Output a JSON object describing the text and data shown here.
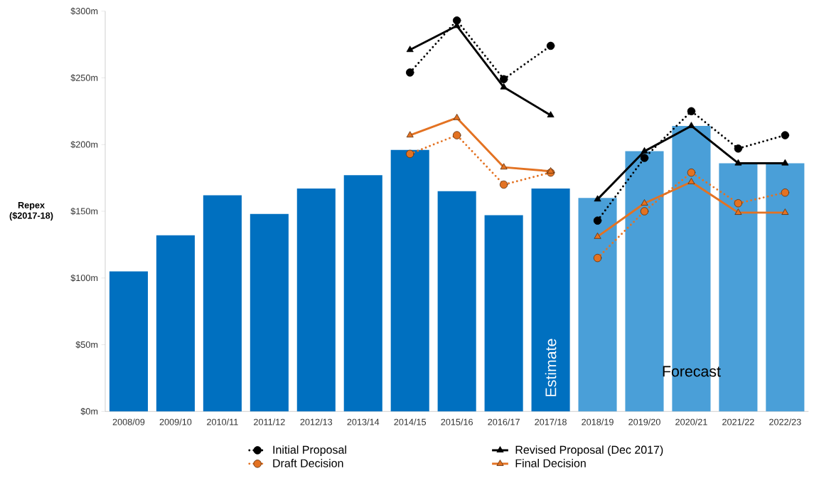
{
  "chart_data": {
    "type": "bar",
    "ylabel": "Repex ($2017-18)",
    "categories": [
      "2008/09",
      "2009/10",
      "2010/11",
      "2011/12",
      "2012/13",
      "2013/14",
      "2014/15",
      "2015/16",
      "2016/17",
      "2017/18",
      "2018/19",
      "2019/20",
      "2020/21",
      "2021/22",
      "2022/23"
    ],
    "series": [
      {
        "color": "#0070c0",
        "values": [
          105,
          132,
          162,
          148,
          167,
          177,
          196,
          165,
          147,
          167,
          null,
          null,
          null,
          null,
          null
        ]
      },
      {
        "color": "#4a9fd8",
        "values": [
          null,
          null,
          null,
          null,
          null,
          null,
          null,
          null,
          null,
          null,
          160,
          195,
          214,
          186,
          186
        ]
      },
      {
        "type": "line",
        "name": "Initial Proposal",
        "color": "#000000",
        "marker": "circle",
        "line_style": "dotted",
        "values": [
          null,
          null,
          null,
          null,
          null,
          null,
          254,
          293,
          249,
          274,
          null,
          null,
          null,
          null,
          null
        ]
      },
      {
        "type": "line",
        "name": "Revised Proposal (Dec 2017)",
        "color": "#000000",
        "marker": "triangle",
        "line_style": "solid",
        "values": [
          null,
          null,
          null,
          null,
          null,
          null,
          271,
          289,
          243,
          222,
          null,
          null,
          null,
          null,
          null
        ]
      },
      {
        "type": "line",
        "name": "Draft Decision",
        "color": "#e37222",
        "marker": "circle",
        "line_style": "dotted",
        "values": [
          null,
          null,
          null,
          null,
          null,
          null,
          193,
          207,
          170,
          179,
          null,
          null,
          null,
          null,
          null
        ]
      },
      {
        "type": "line",
        "name": "Final Decision",
        "color": "#e37222",
        "marker": "triangle",
        "line_style": "solid",
        "values": [
          null,
          null,
          null,
          null,
          null,
          null,
          207,
          220,
          183,
          180,
          null,
          null,
          null,
          null,
          null
        ]
      },
      {
        "type": "line",
        "color": "#000000",
        "marker": "circle",
        "line_style": "dotted",
        "values": [
          null,
          null,
          null,
          null,
          null,
          null,
          null,
          null,
          null,
          null,
          143,
          190,
          225,
          197,
          207
        ]
      },
      {
        "type": "line",
        "color": "#000000",
        "marker": "triangle",
        "line_style": "solid",
        "values": [
          null,
          null,
          null,
          null,
          null,
          null,
          null,
          null,
          null,
          null,
          159,
          195,
          214,
          186,
          186
        ]
      },
      {
        "type": "line",
        "color": "#e37222",
        "marker": "circle",
        "line_style": "dotted",
        "values": [
          null,
          null,
          null,
          null,
          null,
          null,
          null,
          null,
          null,
          null,
          115,
          150,
          179,
          156,
          164
        ]
      },
      {
        "type": "line",
        "color": "#e37222",
        "marker": "triangle",
        "line_style": "solid",
        "values": [
          null,
          null,
          null,
          null,
          null,
          null,
          null,
          null,
          null,
          null,
          131,
          156,
          172,
          149,
          149
        ]
      }
    ],
    "ylim": [
      0,
      300
    ],
    "yticks": [
      {
        "value": 0,
        "label": "$0m"
      },
      {
        "value": 50,
        "label": "$50m"
      },
      {
        "value": 100,
        "label": "$100m"
      },
      {
        "value": 150,
        "label": "$150m"
      },
      {
        "value": 200,
        "label": "$200m"
      },
      {
        "value": 250,
        "label": "$250m"
      },
      {
        "value": 300,
        "label": "$300m"
      }
    ],
    "annotations": [
      "Estimate",
      "Forecast"
    ],
    "legend": "bottom",
    "grid": false
  }
}
